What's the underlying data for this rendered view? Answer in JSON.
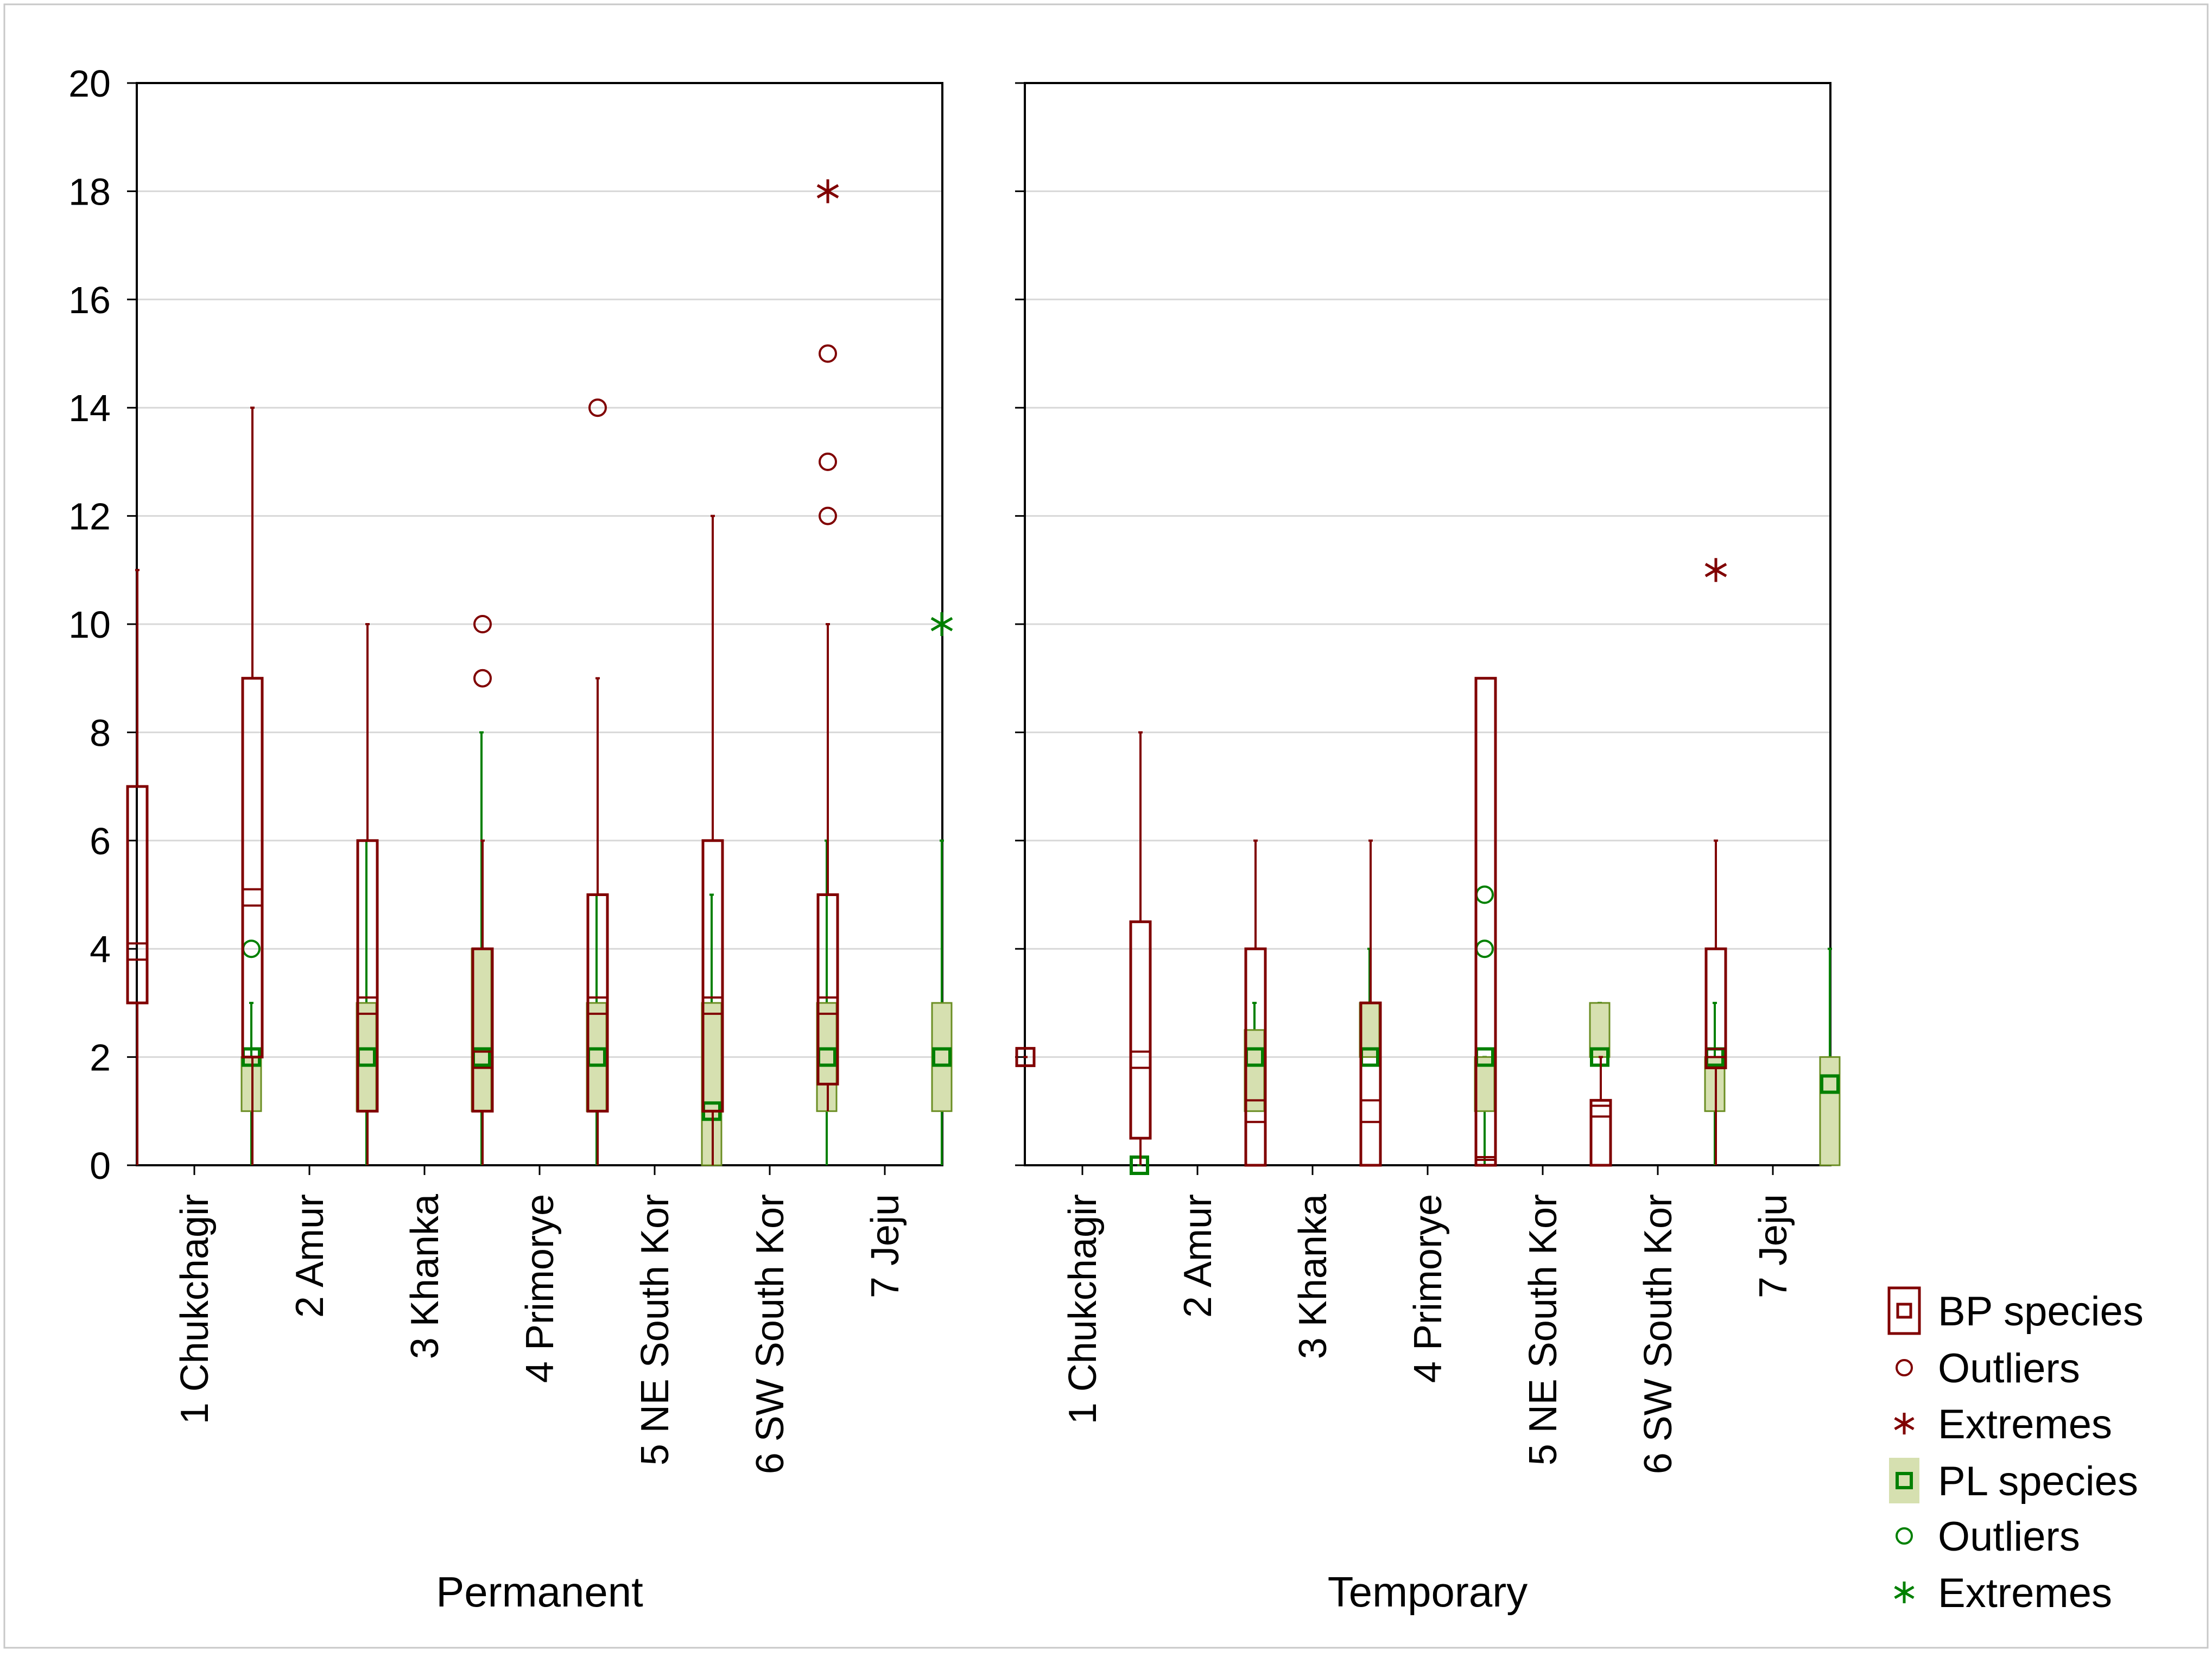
{
  "chart_data": {
    "type": "boxplot",
    "y_ticks": [
      "0",
      "2",
      "4",
      "6",
      "8",
      "10",
      "12",
      "14",
      "16",
      "18",
      "20"
    ],
    "ylim": [
      0,
      20
    ],
    "grid": true,
    "colors": {
      "bp": "#800000",
      "pl": "#008000",
      "pl_box_fill": "#d6e0b0",
      "pl_box_stroke": "#6b8e23",
      "grid": "#d8d8d8"
    },
    "legend": {
      "position": "right",
      "entries": [
        {
          "label": "BP species",
          "symbol": "box",
          "group": "bp"
        },
        {
          "label": "Outliers",
          "symbol": "circle",
          "group": "bp"
        },
        {
          "label": "Extremes",
          "symbol": "star",
          "group": "bp"
        },
        {
          "label": "PL species",
          "symbol": "box",
          "group": "pl"
        },
        {
          "label": "Outliers",
          "symbol": "circle",
          "group": "pl"
        },
        {
          "label": "Extremes",
          "symbol": "star",
          "group": "pl"
        }
      ]
    },
    "panels": [
      {
        "xlabel": "Permanent",
        "categories": [
          "1 Chukchagir",
          "2 Amur",
          "3 Khanka",
          "4 Primorye",
          "5 NE South Kor",
          "6 SW South Kor",
          "7 Jeju"
        ],
        "bp": [
          {
            "median": 3.8,
            "mean": 4.1,
            "q1": 3,
            "q3": 7,
            "min": 0,
            "max": 11,
            "outliers": [],
            "extremes": []
          },
          {
            "median": 4.8,
            "mean": 5.1,
            "q1": 2,
            "q3": 9,
            "min": 0,
            "max": 14,
            "outliers": [],
            "extremes": []
          },
          {
            "median": 2.8,
            "mean": 3.1,
            "q1": 1,
            "q3": 6,
            "min": 0,
            "max": 10,
            "outliers": [],
            "extremes": []
          },
          {
            "median": 1.8,
            "mean": 2.1,
            "q1": 1,
            "q3": 4,
            "min": 0,
            "max": 6,
            "outliers": [
              10,
              9
            ],
            "extremes": []
          },
          {
            "median": 2.8,
            "mean": 3.1,
            "q1": 1,
            "q3": 5,
            "min": 0,
            "max": 9,
            "outliers": [
              14
            ],
            "extremes": []
          },
          {
            "median": 2.8,
            "mean": 3.1,
            "q1": 1,
            "q3": 6,
            "min": 0,
            "max": 12,
            "outliers": [],
            "extremes": []
          },
          {
            "median": 2.8,
            "mean": 3.1,
            "q1": 1.5,
            "q3": 5,
            "min": 1,
            "max": 10,
            "outliers": [
              15,
              13,
              12
            ],
            "extremes": [
              18
            ]
          }
        ],
        "pl": [
          {
            "median": 2,
            "q1": 1,
            "q3": 2,
            "min": 0,
            "max": 3,
            "outliers": [
              4
            ],
            "extremes": []
          },
          {
            "median": 2,
            "q1": 1,
            "q3": 3,
            "min": 0,
            "max": 6,
            "outliers": [],
            "extremes": []
          },
          {
            "median": 2,
            "q1": 1,
            "q3": 4,
            "min": 0,
            "max": 8,
            "outliers": [],
            "extremes": []
          },
          {
            "median": 2,
            "q1": 1,
            "q3": 3,
            "min": 0,
            "max": 5,
            "outliers": [],
            "extremes": []
          },
          {
            "median": 1,
            "q1": 0,
            "q3": 3,
            "min": 0,
            "max": 5,
            "outliers": [],
            "extremes": []
          },
          {
            "median": 2,
            "q1": 1,
            "q3": 3,
            "min": 0,
            "max": 6,
            "outliers": [],
            "extremes": []
          },
          {
            "median": 2,
            "q1": 1,
            "q3": 3,
            "min": 0,
            "max": 6,
            "outliers": [],
            "extremes": [
              10
            ]
          }
        ]
      },
      {
        "xlabel": "Temporary",
        "categories": [
          "1 Chukchagir",
          "2 Amur",
          "3 Khanka",
          "4 Primorye",
          "5 NE South Kor",
          "6 SW South Kor",
          "7 Jeju"
        ],
        "bp": [
          {
            "median": 2,
            "mean": 2,
            "q1": 2,
            "q3": 2,
            "min": 2,
            "max": 2,
            "outliers": [],
            "extremes": []
          },
          {
            "median": 1.8,
            "mean": 2.1,
            "q1": 0.5,
            "q3": 4.5,
            "min": 0,
            "max": 8,
            "outliers": [],
            "extremes": []
          },
          {
            "median": 0.8,
            "mean": 1.2,
            "q1": 0,
            "q3": 4,
            "min": 0,
            "max": 6,
            "outliers": [],
            "extremes": []
          },
          {
            "median": 0.8,
            "mean": 1.2,
            "q1": 0,
            "q3": 3,
            "min": 0,
            "max": 6,
            "outliers": [],
            "extremes": []
          },
          {
            "median": 0.1,
            "mean": 0.15,
            "q1": 0,
            "q3": 9,
            "min": 0,
            "max": 9,
            "outliers": [],
            "extremes": []
          },
          {
            "median": 0.9,
            "mean": 1.1,
            "q1": 0,
            "q3": 1.2,
            "min": 0,
            "max": 2,
            "outliers": [],
            "extremes": []
          },
          {
            "median": 2,
            "mean": 2.15,
            "q1": 1.8,
            "q3": 4,
            "min": 0,
            "max": 6,
            "outliers": [],
            "extremes": [
              11
            ]
          }
        ],
        "pl": [
          {
            "median": 0,
            "q1": 0,
            "q3": 0,
            "min": 0,
            "max": 0,
            "outliers": [],
            "extremes": []
          },
          {
            "median": 2,
            "q1": 1,
            "q3": 2.5,
            "min": 1,
            "max": 3,
            "outliers": [],
            "extremes": []
          },
          {
            "median": 2,
            "q1": 2,
            "q3": 3,
            "min": 2,
            "max": 4,
            "outliers": [],
            "extremes": []
          },
          {
            "median": 2,
            "q1": 1,
            "q3": 2,
            "min": 0,
            "max": 2,
            "outliers": [
              5,
              4
            ],
            "extremes": []
          },
          {
            "median": 2,
            "q1": 2,
            "q3": 3,
            "min": 2,
            "max": 3,
            "outliers": [],
            "extremes": []
          },
          {
            "median": 2,
            "q1": 1,
            "q3": 2,
            "min": 0,
            "max": 3,
            "outliers": [],
            "extremes": []
          },
          {
            "median": 1.5,
            "q1": 0,
            "q3": 2,
            "min": 0,
            "max": 4,
            "outliers": [],
            "extremes": []
          }
        ]
      }
    ]
  }
}
